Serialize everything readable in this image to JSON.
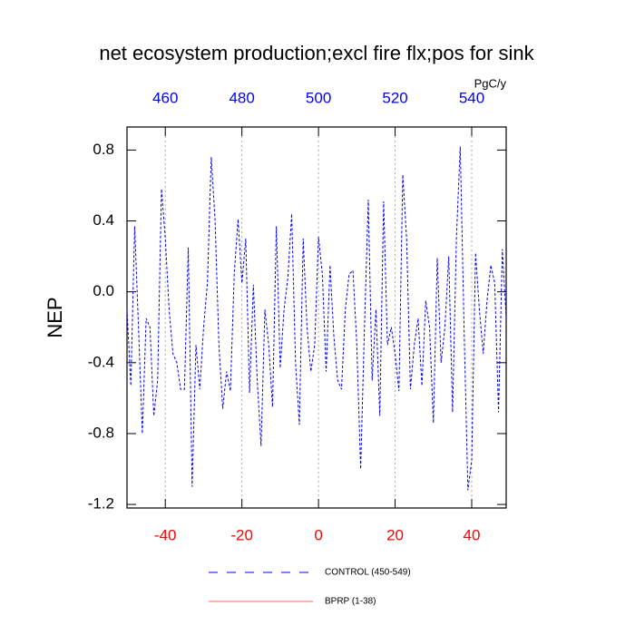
{
  "chart_data": {
    "type": "line",
    "title": "net ecosystem production;excl fire flx;pos for sink",
    "ylabel": "NEP",
    "x2label": "PgC/y",
    "x": [
      -50,
      -49,
      -48,
      -47,
      -46,
      -45,
      -44,
      -43,
      -42,
      -41,
      -40,
      -39,
      -38,
      -37,
      -36,
      -35,
      -34,
      -33,
      -32,
      -31,
      -30,
      -29,
      -28,
      -27,
      -26,
      -25,
      -24,
      -23,
      -22,
      -21,
      -20,
      -19,
      -18,
      -17,
      -16,
      -15,
      -14,
      -13,
      -12,
      -11,
      -10,
      -9,
      -8,
      -7,
      -6,
      -5,
      -4,
      -3,
      -2,
      -1,
      0,
      1,
      2,
      3,
      4,
      5,
      6,
      7,
      8,
      9,
      10,
      11,
      12,
      13,
      14,
      15,
      16,
      17,
      18,
      19,
      20,
      21,
      22,
      23,
      24,
      25,
      26,
      27,
      28,
      29,
      30,
      31,
      32,
      33,
      34,
      35,
      36,
      37,
      38,
      39,
      40,
      41,
      42,
      43,
      44,
      45,
      46,
      47,
      48,
      49
    ],
    "series": [
      {
        "name": "CONTROL (450-549)",
        "color": "#0000ff",
        "dash": true,
        "values": [
          -0.1,
          -0.53,
          0.37,
          -0.2,
          -0.8,
          -0.15,
          -0.2,
          -0.7,
          -0.5,
          0.58,
          0.3,
          -0.1,
          -0.35,
          -0.4,
          -0.55,
          -0.55,
          0.25,
          -1.1,
          -0.3,
          -0.55,
          -0.2,
          0.05,
          0.76,
          0.4,
          -0.3,
          -0.66,
          -0.45,
          -0.56,
          0.1,
          0.41,
          0.05,
          0.3,
          -0.57,
          0.04,
          -0.5,
          -0.87,
          -0.1,
          -0.3,
          -0.65,
          0.37,
          -0.43,
          -0.1,
          0.08,
          0.44,
          -0.4,
          -0.75,
          0.3,
          -0.2,
          -0.45,
          -0.3,
          0.31,
          0.1,
          -0.45,
          0.15,
          -0.25,
          -0.5,
          -0.55,
          -0.1,
          0.1,
          0.12,
          -0.3,
          -1.0,
          -0.2,
          0.52,
          -0.5,
          -0.1,
          -0.7,
          0.51,
          -0.3,
          -0.2,
          -0.35,
          -0.56,
          0.66,
          0.3,
          -0.55,
          -0.3,
          -0.15,
          -0.53,
          -0.05,
          -0.2,
          -0.74,
          0.19,
          -0.4,
          -0.2,
          0.2,
          -0.68,
          0.3,
          0.82,
          -0.2,
          -1.12,
          -0.95,
          0.22,
          -0.1,
          -0.35,
          -0.05,
          0.15,
          0.05,
          -0.68,
          0.24,
          -0.15
        ]
      },
      {
        "name": "BPRP (1-38)",
        "color": "#ff0000",
        "dash": false,
        "values": [
          null,
          null,
          null,
          null,
          null,
          null,
          null,
          null,
          null,
          null,
          null,
          null,
          null,
          null,
          null,
          null,
          null,
          null,
          null,
          null,
          null,
          null,
          null,
          null,
          null,
          null,
          null,
          null,
          null,
          null,
          null,
          null,
          null,
          null,
          null,
          null,
          null,
          null,
          null,
          null,
          null,
          null,
          null,
          null,
          null,
          null,
          null,
          null,
          null,
          null,
          null,
          null,
          null,
          null,
          null,
          null,
          null,
          null,
          null,
          null,
          null,
          null,
          null,
          null,
          null,
          null,
          null,
          null,
          null,
          null,
          null,
          null,
          null,
          null,
          null,
          null,
          null,
          null,
          null,
          null,
          null,
          null,
          null,
          null,
          null,
          null,
          null,
          null,
          null,
          null,
          null,
          null,
          null,
          null,
          null,
          null,
          null,
          null,
          null,
          null
        ]
      }
    ],
    "xlim": [
      -50,
      49
    ],
    "xticks": [
      -40,
      -20,
      0,
      20,
      40
    ],
    "xtick_color": "#ff0000",
    "x2lim": [
      450,
      549
    ],
    "x2ticks": [
      460,
      480,
      500,
      520,
      540
    ],
    "x2tick_color": "#0000ff",
    "ylim": [
      -1.22,
      0.93
    ],
    "yticks": [
      -1.2,
      -0.8,
      -0.4,
      {
        "value": 0,
        "label": "0.0"
      },
      0.4,
      0.8
    ],
    "grid": true
  }
}
